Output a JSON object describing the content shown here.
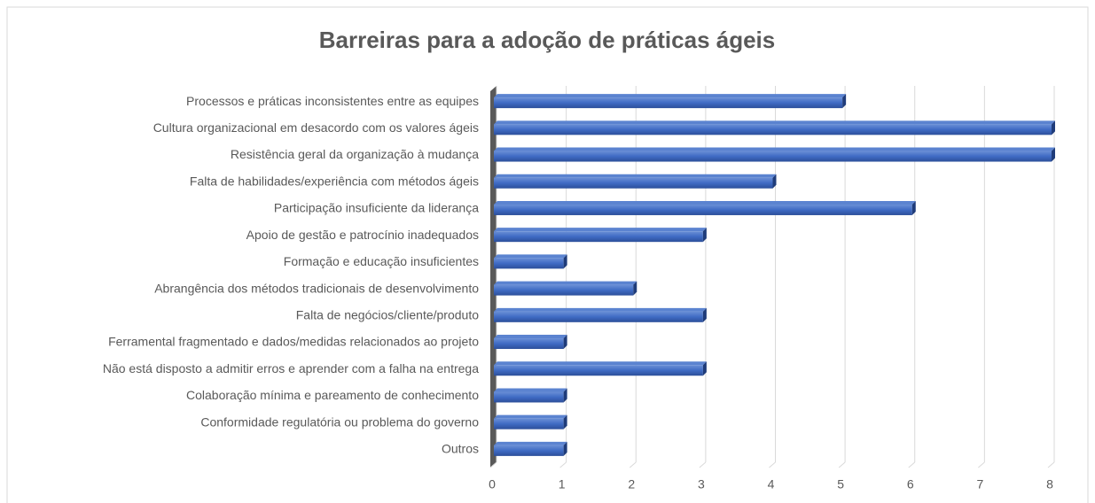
{
  "chart_data": {
    "type": "bar",
    "orientation": "horizontal",
    "title": "Barreiras para a adoção de práticas ágeis",
    "categories": [
      "Processos e práticas inconsistentes entre as equipes",
      "Cultura organizacional em desacordo com os valores ágeis",
      "Resistência geral da organização à mudança",
      "Falta de habilidades/experiência com métodos ágeis",
      "Participação insuficiente da liderança",
      "Apoio de gestão e patrocínio inadequados",
      "Formação e educação insuficientes",
      "Abrangência dos métodos tradicionais de desenvolvimento",
      "Falta de negócios/cliente/produto",
      "Ferramental fragmentado e dados/medidas relacionados ao projeto",
      "Não está disposto a admitir erros e aprender com a falha na entrega",
      "Colaboração mínima e pareamento de conhecimento",
      "Conformidade regulatória ou problema do governo",
      "Outros"
    ],
    "values": [
      5,
      8,
      8,
      4,
      6,
      3,
      1,
      2,
      3,
      1,
      3,
      1,
      1,
      1
    ],
    "color": "#4472c4",
    "xlim": [
      0,
      8
    ],
    "xticks": [
      0,
      1,
      2,
      3,
      4,
      5,
      6,
      7,
      8
    ],
    "grid": true
  }
}
